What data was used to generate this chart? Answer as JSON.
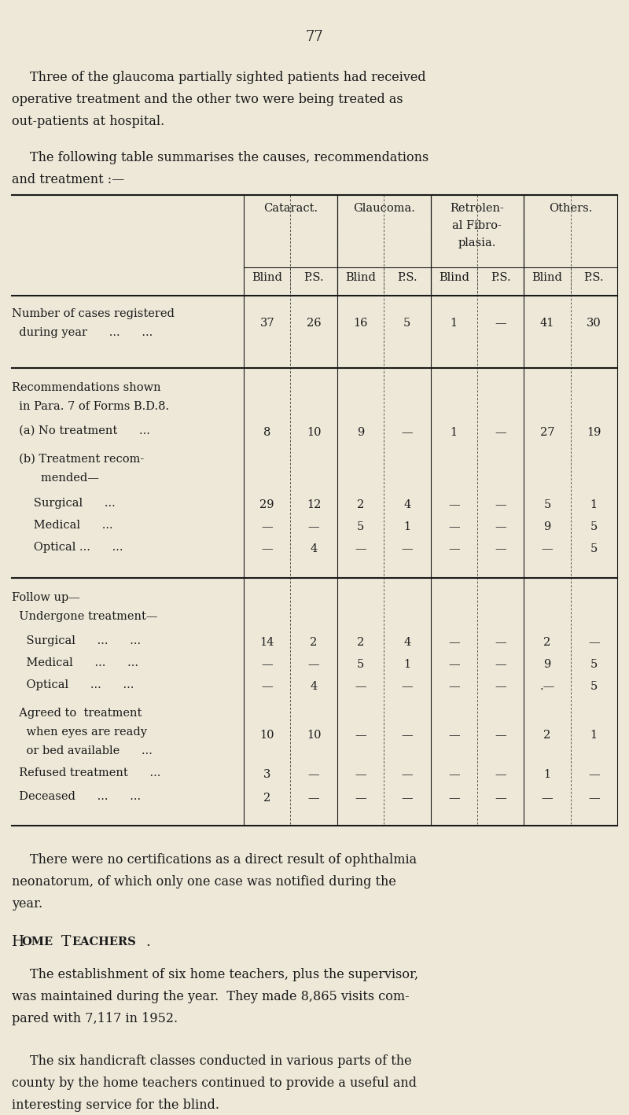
{
  "bg_color": "#ede8d8",
  "text_color": "#1a1a1a",
  "page_number": "77",
  "col_headers": [
    "Cataract.",
    "Glaucoma.",
    "Retrolen-\nal Fibro-\nplasia.",
    "Others."
  ],
  "row1_vals": [
    "37",
    "26",
    "16",
    "5",
    "1",
    "—",
    "41",
    "30"
  ],
  "row2b_vals": [
    "8",
    "10",
    "9",
    "—",
    "1",
    "—",
    "27",
    "19"
  ],
  "row2d_vals": [
    "29",
    "12",
    "2",
    "4",
    "—",
    "—",
    "5",
    "1"
  ],
  "row2e_vals": [
    "—",
    "—",
    "5",
    "1",
    "—",
    "—",
    "9",
    "5"
  ],
  "row2f_vals": [
    "—",
    "4",
    "—",
    "—",
    "—",
    "—",
    "—",
    "5"
  ],
  "row3b_vals": [
    "14",
    "2",
    "2",
    "4",
    "—",
    "—",
    "2",
    "—"
  ],
  "row3c_vals": [
    "—",
    "—",
    "5",
    "1",
    "—",
    "—",
    "9",
    "5"
  ],
  "row3d_vals": [
    "—",
    "4",
    "—",
    "—",
    "—",
    "—",
    ".—",
    "5"
  ],
  "row3e_vals": [
    "10",
    "10",
    "—",
    "—",
    "—",
    "—",
    "2",
    "1"
  ],
  "row3f_vals": [
    "3",
    "—",
    "—",
    "—",
    "—",
    "—",
    "1",
    "—"
  ],
  "row3g_vals": [
    "2",
    "—",
    "—",
    "—",
    "—",
    "—",
    "—",
    "—"
  ]
}
